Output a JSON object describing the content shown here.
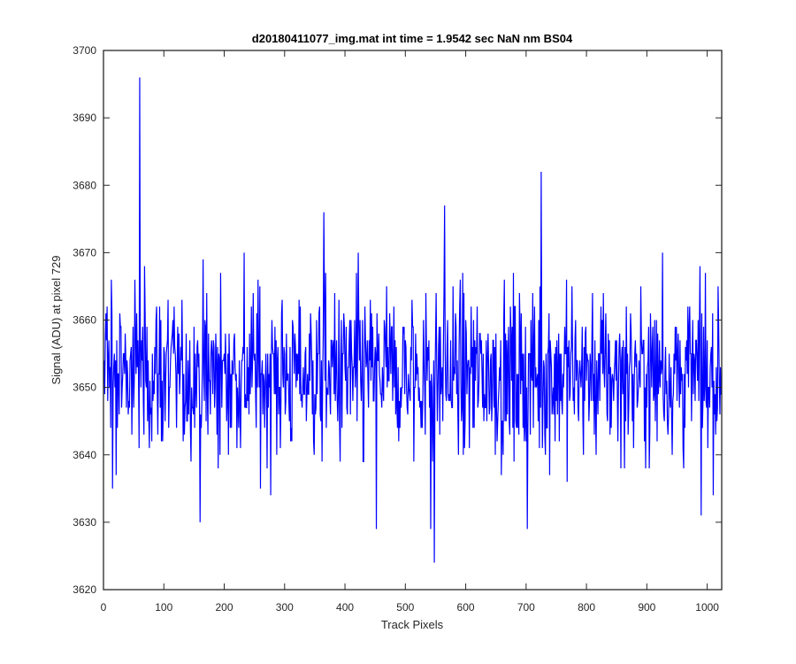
{
  "chart_data": {
    "type": "line",
    "title": "d20180411077_img.mat int time = 1.9542 sec  NaN nm BS04",
    "xlabel": "Track Pixels",
    "ylabel": "Signal (ADU) at pixel 729",
    "xlim": [
      0,
      1024
    ],
    "ylim": [
      3620,
      3700
    ],
    "xticks": [
      0,
      100,
      200,
      300,
      400,
      500,
      600,
      700,
      800,
      900,
      1000
    ],
    "yticks": [
      3620,
      3630,
      3640,
      3650,
      3660,
      3670,
      3680,
      3690,
      3700
    ],
    "grid": false,
    "series_color": "#0000ff",
    "series": [
      {
        "x_start": 1,
        "x_step": 1,
        "count": 1024,
        "mean": 3652,
        "min": 3624,
        "max": 3696,
        "notable_points": [
          {
            "x": 15,
            "y": 3635
          },
          {
            "x": 60,
            "y": 3696
          },
          {
            "x": 160,
            "y": 3630
          },
          {
            "x": 365,
            "y": 3676
          },
          {
            "x": 452,
            "y": 3629
          },
          {
            "x": 542,
            "y": 3629
          },
          {
            "x": 548,
            "y": 3624
          },
          {
            "x": 565,
            "y": 3677
          },
          {
            "x": 702,
            "y": 3629
          },
          {
            "x": 725,
            "y": 3682
          },
          {
            "x": 926,
            "y": 3670
          },
          {
            "x": 990,
            "y": 3631
          }
        ]
      }
    ]
  }
}
